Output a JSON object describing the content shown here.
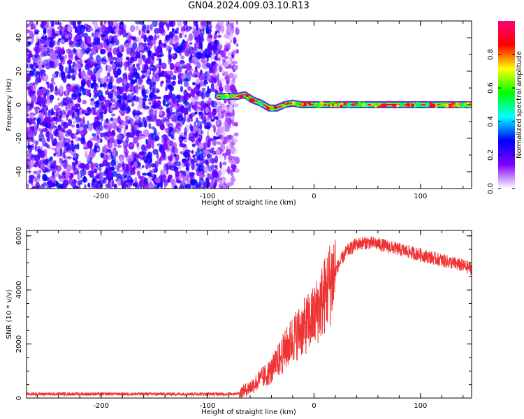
{
  "title": "GN04.2024.009.03.10.R13",
  "chart_data": [
    {
      "type": "heatmap",
      "title": "GN04.2024.009.03.10.R13",
      "xlabel": "Height of straight line (km)",
      "ylabel": "Frequency (Hz)",
      "xlim": [
        -270,
        148
      ],
      "ylim": [
        -50,
        50
      ],
      "xticks": [
        -200,
        -100,
        0,
        100
      ],
      "yticks": [
        -40,
        -20,
        0,
        20,
        40
      ],
      "grid": false,
      "colorbar": {
        "label": "Normalized spectral amplitude",
        "range": [
          0,
          1
        ],
        "ticks": [
          0.0,
          0.2,
          0.4,
          0.6,
          0.8
        ],
        "colors": [
          "#ffffff",
          "#8000ff",
          "#0000ff",
          "#00ffff",
          "#00ff00",
          "#ffff00",
          "#ff0000",
          "#ff0080"
        ]
      },
      "noise_region": {
        "x": [
          -270,
          -80
        ],
        "y": [
          -50,
          50
        ],
        "amplitude": [
          0.05,
          0.3
        ]
      },
      "signal_track": {
        "x": [
          -90,
          -80,
          -72,
          -65,
          -58,
          -50,
          -42,
          -35,
          -28,
          -20,
          -12,
          -5,
          0,
          10,
          20,
          30,
          40,
          60,
          80,
          100,
          120,
          148
        ],
        "frequency": [
          5,
          5,
          5,
          6,
          3,
          1,
          -2,
          -2,
          0,
          1,
          0,
          0,
          0,
          0,
          0,
          0,
          0,
          0,
          0,
          0,
          0,
          0
        ]
      }
    },
    {
      "type": "line",
      "xlabel": "Height of straight line (km)",
      "ylabel": "SNR (10 * v/v)",
      "xlim": [
        -270,
        148
      ],
      "ylim": [
        0,
        6200
      ],
      "xticks": [
        -200,
        -100,
        0,
        100
      ],
      "yticks": [
        0,
        2000,
        4000,
        6000
      ],
      "color": "#ee3333",
      "grid": false,
      "x": [
        -270,
        -200,
        -150,
        -100,
        -80,
        -70,
        -60,
        -50,
        -40,
        -30,
        -20,
        -10,
        0,
        10,
        20,
        30,
        40,
        50,
        60,
        70,
        80,
        90,
        100,
        110,
        120,
        130,
        148
      ],
      "y": [
        150,
        150,
        150,
        150,
        150,
        180,
        400,
        700,
        1000,
        1600,
        2200,
        2600,
        3000,
        3800,
        4700,
        5400,
        5700,
        5750,
        5700,
        5600,
        5500,
        5400,
        5300,
        5200,
        5100,
        5000,
        4800
      ]
    }
  ]
}
